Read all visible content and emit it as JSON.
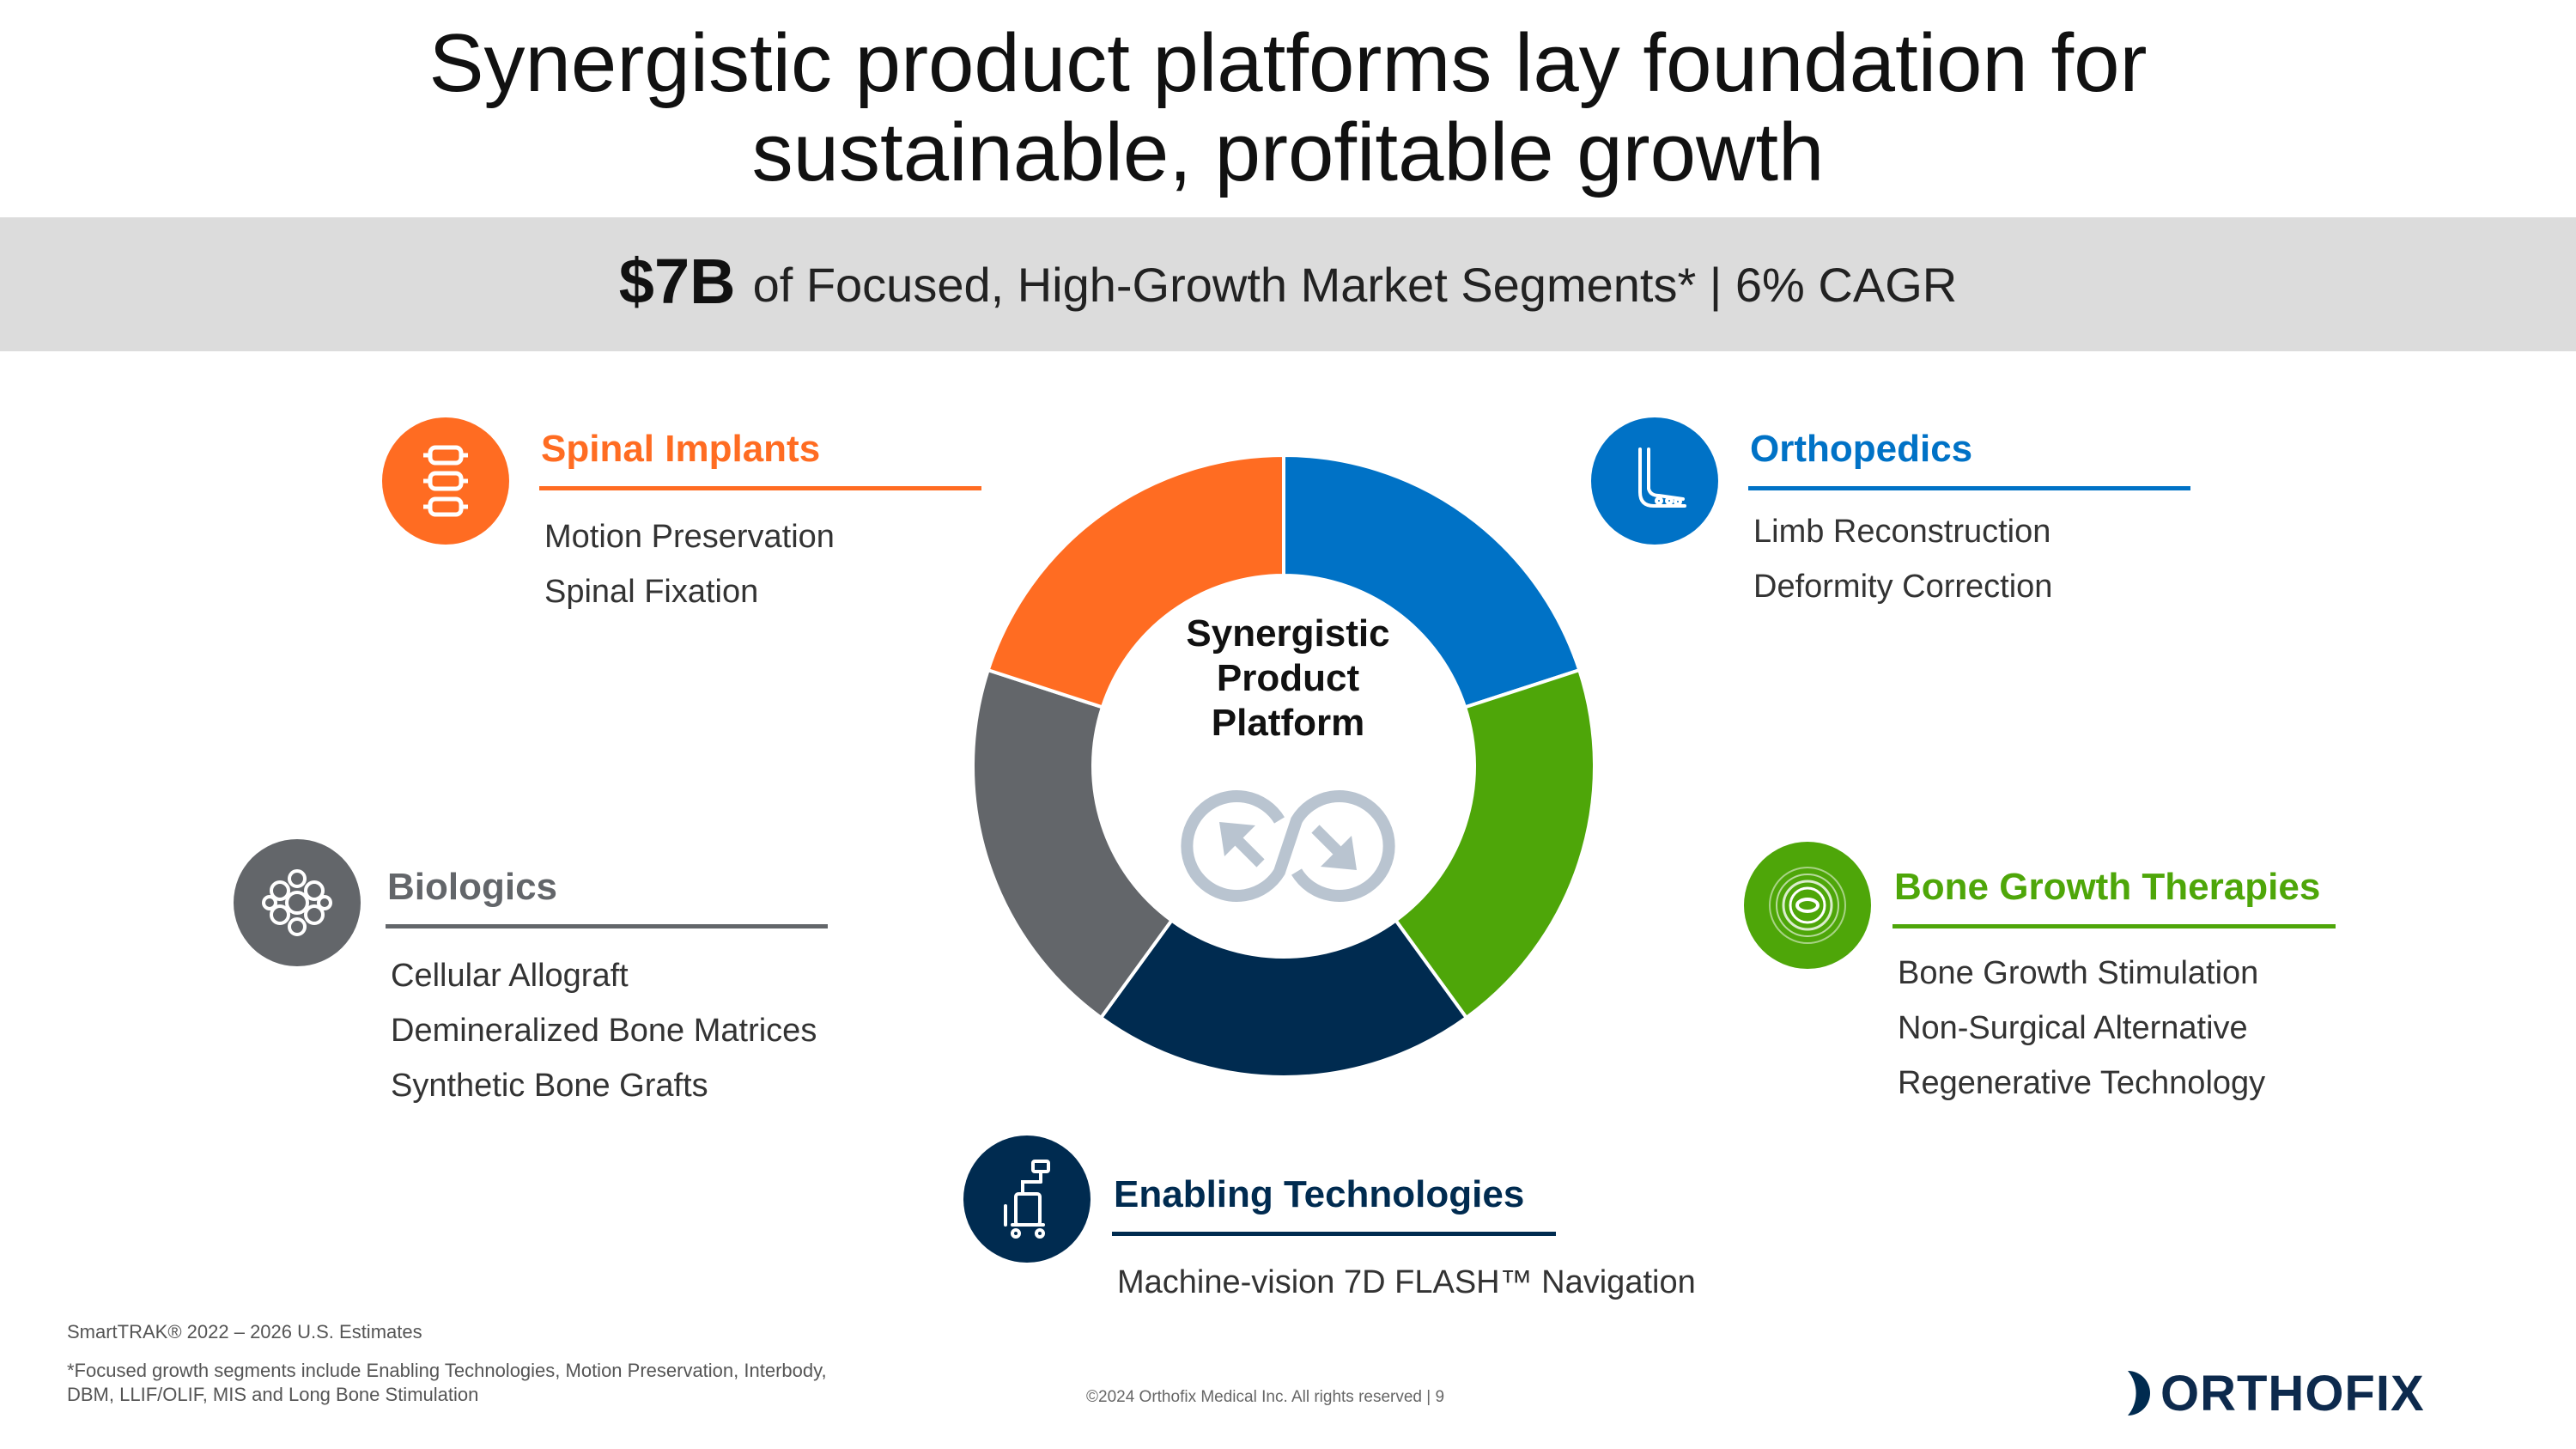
{
  "title": {
    "line1": "Synergistic product platforms lay foundation for",
    "line2": "sustainable, profitable growth"
  },
  "banner": {
    "value": "$7B",
    "text": "of Focused, High-Growth Market Segments* | 6% CAGR"
  },
  "center": {
    "line1": "Synergistic",
    "line2": "Product",
    "line3": "Platform",
    "icon": "sync-arrows-icon"
  },
  "ring_segments": [
    {
      "segment": "Orthopedics",
      "share": 0.2,
      "color": "#0072C6"
    },
    {
      "segment": "Bone Growth Therapies",
      "share": 0.2,
      "color": "#4EA609"
    },
    {
      "segment": "Enabling Technologies",
      "share": 0.2,
      "color": "#002B50"
    },
    {
      "segment": "Biologics",
      "share": 0.2,
      "color": "#63666A"
    },
    {
      "segment": "Spinal Implants",
      "share": 0.2,
      "color": "#FF6C22"
    }
  ],
  "segments": {
    "spinal": {
      "title": "Spinal Implants",
      "color": "#FF6C22",
      "icon": "spine-icon",
      "items": [
        "Motion Preservation",
        "Spinal Fixation"
      ]
    },
    "ortho": {
      "title": "Orthopedics",
      "color": "#0072C6",
      "icon": "foot-bone-icon",
      "items": [
        "Limb Reconstruction",
        "Deformity Correction"
      ]
    },
    "bio": {
      "title": "Biologics",
      "color": "#63666A",
      "icon": "cell-cluster-icon",
      "items": [
        "Cellular Allograft",
        "Demineralized Bone Matrices",
        "Synthetic Bone Grafts"
      ]
    },
    "bone": {
      "title": "Bone Growth Therapies",
      "color": "#4EA609",
      "icon": "concentric-rings-icon",
      "items": [
        "Bone Growth Stimulation",
        "Non-Surgical Alternative",
        "Regenerative Technology"
      ]
    },
    "enabling": {
      "title": "Enabling Technologies",
      "color": "#002B50",
      "icon": "navigation-cart-icon",
      "items": [
        "Machine-vision 7D FLASH™ Navigation"
      ]
    }
  },
  "footer": {
    "source": "SmartTRAK® 2022 – 2026 U.S. Estimates",
    "footnote": "*Focused growth segments include Enabling Technologies, Motion Preservation, Interbody, DBM, LLIF/OLIF, MIS and Long Bone Stimulation",
    "copyright": "©2024 Orthofix Medical Inc. All rights reserved  |  9",
    "brand": "ORTHOFIX"
  }
}
